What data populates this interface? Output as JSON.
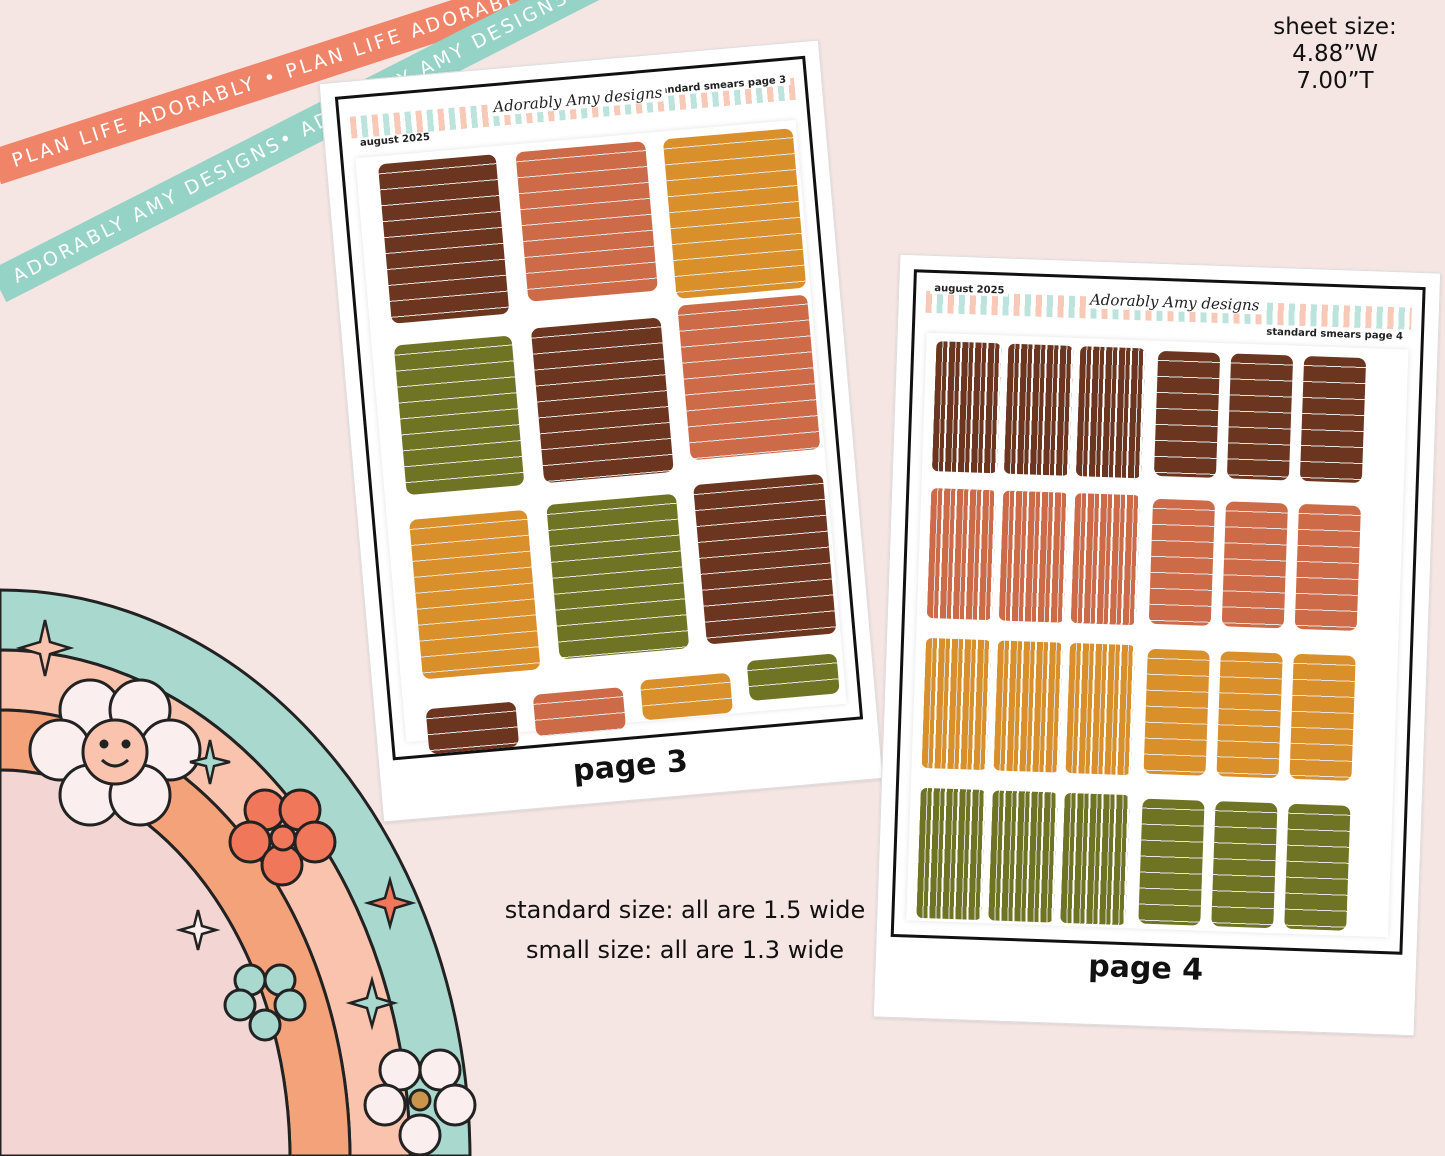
{
  "ribbons": {
    "orange_text": "PLAN LIFE ADORABLY • PLAN LIFE ADORABLY • PLAN LIFE ADO",
    "teal_text": "ADORABLY AMY DESIGNS• ADORABLY AMY DESIGNS• ADORABLY AMY DESIGNS•"
  },
  "sheet_size": {
    "label": "sheet size:",
    "width": "4.88”W",
    "height": "7.00”T"
  },
  "sheets": [
    {
      "month": "august 2025",
      "logo": "Adorably Amy designs",
      "title": "standard smears page 3",
      "page_label": "page 3"
    },
    {
      "month": "august 2025",
      "logo": "Adorably Amy designs",
      "title": "standard smears page 4",
      "page_label": "page 4"
    }
  ],
  "sizes_note": {
    "standard": "standard size: all are 1.5 wide",
    "small": "small size: all are 1.3 wide"
  },
  "colors": {
    "brown": "#6b3520",
    "rust": "#cd6a47",
    "mustard": "#d9902b",
    "olive": "#6f7425",
    "rainbow_teal": "#a9d8cf",
    "rainbow_peach": "#f9c3ad",
    "rainbow_orange": "#f4a27a",
    "rainbow_pink": "#f3d6d3"
  }
}
